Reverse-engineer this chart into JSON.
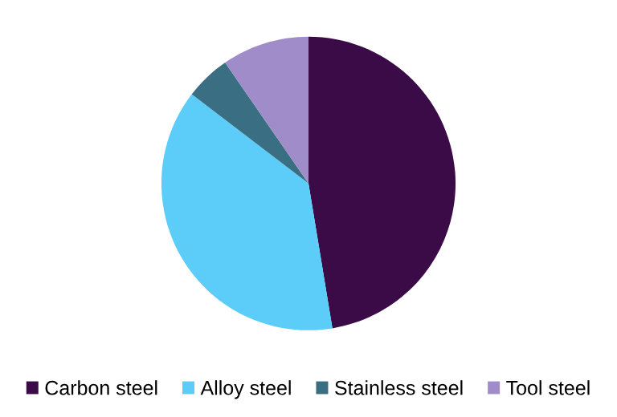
{
  "chart_data": {
    "type": "pie",
    "categories": [
      "Carbon steel",
      "Alloy steel",
      "Stainless steel",
      "Tool steel"
    ],
    "values": [
      47.4,
      38,
      5,
      9.6
    ],
    "colors": [
      "#3a0b47",
      "#5bcdf8",
      "#3a6e82",
      "#a08cc8"
    ],
    "legend": "bottom"
  }
}
